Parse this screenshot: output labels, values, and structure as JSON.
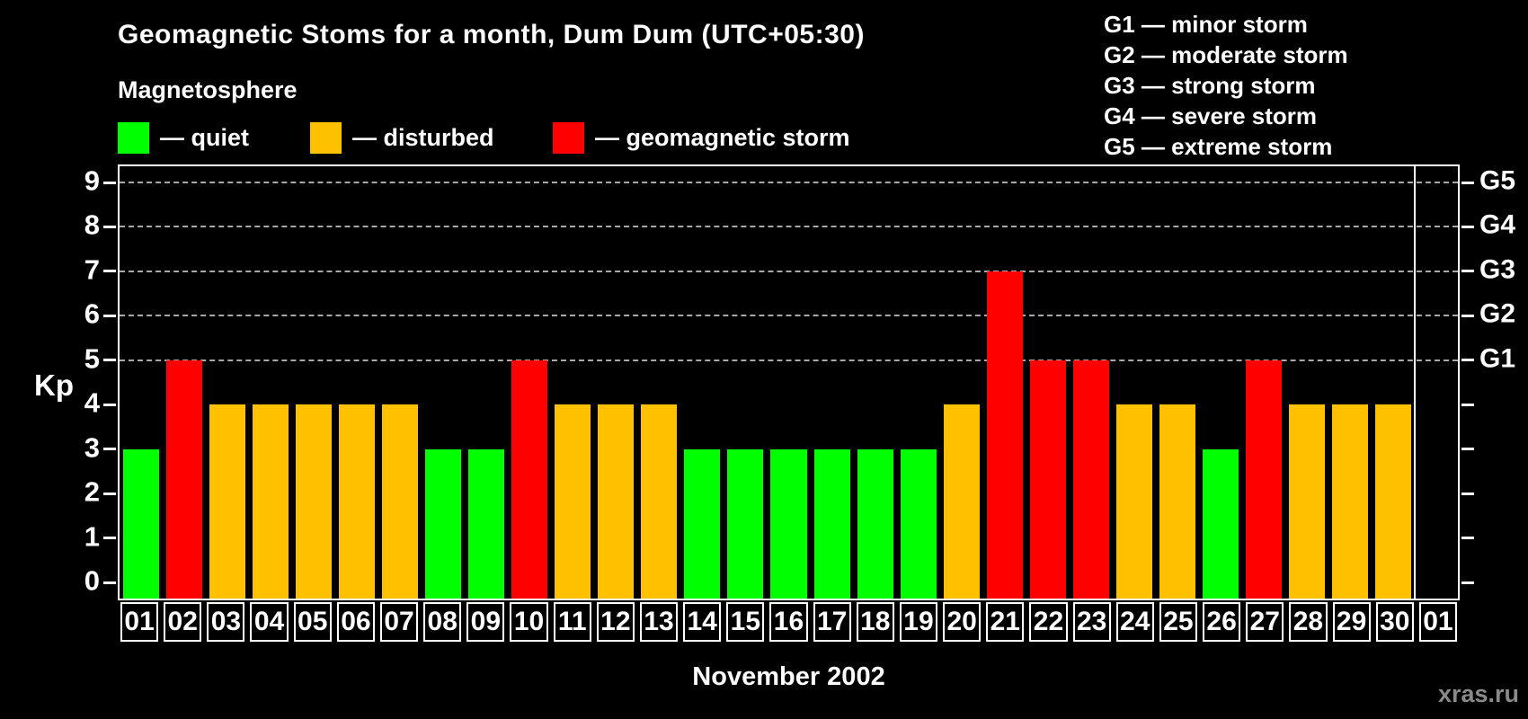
{
  "header": {
    "title": "Geomagnetic Stoms for a month, Dum Dum (UTC+05:30)",
    "legend_title": "Magnetosphere"
  },
  "legend": {
    "items": [
      {
        "key": "quiet",
        "label": "— quiet",
        "color": "#00ff00",
        "x": 0
      },
      {
        "key": "disturbed",
        "label": "— disturbed",
        "color": "#ffc000",
        "x": 214
      },
      {
        "key": "storm",
        "label": "— geomagnetic storm",
        "color": "#ff0000",
        "x": 484
      }
    ]
  },
  "g_legend": {
    "items": [
      {
        "label": "G1 — minor storm"
      },
      {
        "label": "G2 — moderate storm"
      },
      {
        "label": "G3 — strong storm"
      },
      {
        "label": "G4 — severe storm"
      },
      {
        "label": "G5 — extreme storm"
      }
    ]
  },
  "chart_data": {
    "type": "bar",
    "title": "Geomagnetic Stoms for a month, Dum Dum (UTC+05:30)",
    "xlabel": "November 2002",
    "ylabel": "Kp",
    "ylim": [
      0,
      9
    ],
    "y_ticks": [
      0,
      1,
      2,
      3,
      4,
      5,
      6,
      7,
      8,
      9
    ],
    "grid": "horizontal dashed lines at Kp 5–9 (G1–G5), black background",
    "legend_position": "top",
    "right_axis_labels": [
      {
        "kp": 5,
        "label": "G1"
      },
      {
        "kp": 6,
        "label": "G2"
      },
      {
        "kp": 7,
        "label": "G3"
      },
      {
        "kp": 8,
        "label": "G4"
      },
      {
        "kp": 9,
        "label": "G5"
      }
    ],
    "categories": [
      "01",
      "02",
      "03",
      "04",
      "05",
      "06",
      "07",
      "08",
      "09",
      "10",
      "11",
      "12",
      "13",
      "14",
      "15",
      "16",
      "17",
      "18",
      "19",
      "20",
      "21",
      "22",
      "23",
      "24",
      "25",
      "26",
      "27",
      "28",
      "29",
      "30",
      "01"
    ],
    "values": [
      3,
      5,
      4,
      4,
      4,
      4,
      4,
      3,
      3,
      5,
      4,
      4,
      4,
      3,
      3,
      3,
      3,
      3,
      3,
      4,
      7,
      5,
      5,
      4,
      4,
      3,
      5,
      4,
      4,
      4,
      null
    ],
    "statuses": [
      "quiet",
      "storm",
      "disturbed",
      "disturbed",
      "disturbed",
      "disturbed",
      "disturbed",
      "quiet",
      "quiet",
      "storm",
      "disturbed",
      "disturbed",
      "disturbed",
      "quiet",
      "quiet",
      "quiet",
      "quiet",
      "quiet",
      "quiet",
      "disturbed",
      "storm",
      "storm",
      "storm",
      "disturbed",
      "disturbed",
      "quiet",
      "storm",
      "disturbed",
      "disturbed",
      "disturbed",
      null
    ],
    "month_divider_after_category_index": 29
  },
  "colors": {
    "background": "#000000",
    "quiet": "#00ff00",
    "disturbed": "#ffc000",
    "storm": "#ff0000",
    "axis": "#ffffff",
    "grid": "#a8a8a8",
    "watermark_text": "#8a8a8a"
  },
  "footer": {
    "xlabel": "November 2002",
    "watermark": "xras.ru"
  }
}
